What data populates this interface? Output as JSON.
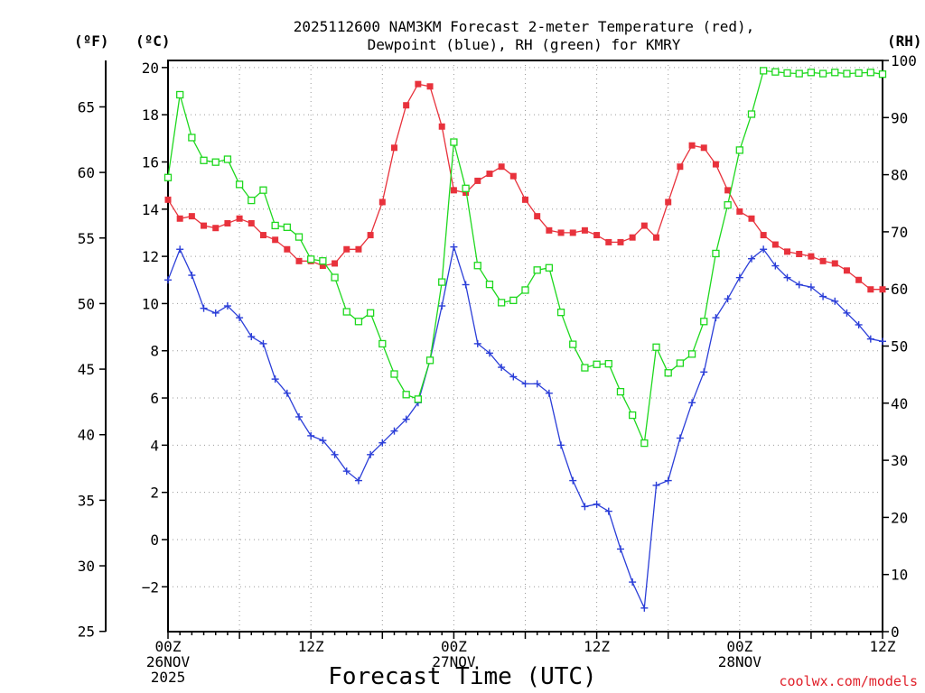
{
  "chart_data": {
    "type": "line",
    "title": [
      "2025112600 NAM3KM Forecast 2-meter Temperature (red),",
      "Dewpoint (blue), RH (green) for KMRY"
    ],
    "xlabel": "Forecast Time (UTC)",
    "credit": "coolwx.com/models",
    "unit_labels": {
      "fahrenheit": "(ºF)",
      "celsius": "(ºC)",
      "rh": "(RH)"
    },
    "x_range_hours": [
      0,
      60
    ],
    "x_ticks": [
      {
        "hour": 0,
        "lines": [
          "00Z",
          "26NOV",
          "2025"
        ]
      },
      {
        "hour": 12,
        "lines": [
          "12Z"
        ]
      },
      {
        "hour": 24,
        "lines": [
          "00Z",
          "27NOV"
        ]
      },
      {
        "hour": 36,
        "lines": [
          "12Z"
        ]
      },
      {
        "hour": 48,
        "lines": [
          "00Z",
          "28NOV"
        ]
      },
      {
        "hour": 60,
        "lines": [
          "12Z"
        ]
      }
    ],
    "celsius_axis": {
      "range": [
        -3.9,
        20.3
      ],
      "ticks": [
        "20",
        "18",
        "16",
        "14",
        "12",
        "10",
        "8",
        "6",
        "4",
        "2",
        "0",
        "−2"
      ],
      "tick_values": [
        20,
        18,
        16,
        14,
        12,
        10,
        8,
        6,
        4,
        2,
        0,
        -2
      ]
    },
    "fahrenheit_axis": {
      "ticks": [
        "65",
        "60",
        "55",
        "50",
        "45",
        "40",
        "35",
        "30",
        "25"
      ],
      "tick_values": [
        65,
        60,
        55,
        50,
        45,
        40,
        35,
        30,
        25
      ]
    },
    "rh_axis": {
      "range": [
        0,
        100
      ],
      "ticks": [
        "100",
        "90",
        "80",
        "70",
        "60",
        "50",
        "40",
        "30",
        "20",
        "10",
        "0"
      ],
      "tick_values": [
        100,
        90,
        80,
        70,
        60,
        50,
        40,
        30,
        20,
        10,
        0
      ]
    },
    "hours": [
      0,
      1,
      2,
      3,
      4,
      5,
      6,
      7,
      8,
      9,
      10,
      11,
      12,
      13,
      14,
      15,
      16,
      17,
      18,
      19,
      20,
      21,
      22,
      23,
      24,
      25,
      26,
      27,
      28,
      29,
      30,
      31,
      32,
      33,
      34,
      35,
      36,
      37,
      38,
      39,
      40,
      41,
      42,
      43,
      44,
      45,
      46,
      47,
      48,
      49,
      50,
      51,
      52,
      53,
      54,
      55,
      56,
      57,
      58,
      59,
      60
    ],
    "series": [
      {
        "name": "2-meter Temperature",
        "units": "C",
        "color": "#e8323c",
        "marker": "filled-square",
        "values": [
          14.4,
          13.6,
          13.7,
          13.3,
          13.2,
          13.4,
          13.6,
          13.4,
          12.9,
          12.7,
          12.3,
          11.8,
          11.8,
          11.6,
          11.7,
          12.3,
          12.3,
          12.9,
          14.3,
          16.6,
          18.4,
          19.3,
          19.2,
          17.5,
          14.8,
          14.7,
          15.2,
          15.5,
          15.8,
          15.4,
          14.4,
          13.7,
          13.1,
          13.0,
          13.0,
          13.1,
          12.9,
          12.6,
          12.6,
          12.8,
          13.3,
          12.8,
          14.3,
          15.8,
          16.7,
          16.6,
          15.9,
          14.8,
          13.9,
          13.6,
          12.9,
          12.5,
          12.2,
          12.1,
          12.0,
          11.8,
          11.7,
          11.4,
          11.0,
          10.6,
          10.6
        ]
      },
      {
        "name": "Dewpoint",
        "units": "C",
        "color": "#2b3ed8",
        "marker": "plus",
        "values": [
          11.0,
          12.3,
          11.2,
          9.8,
          9.6,
          9.9,
          9.4,
          8.6,
          8.3,
          6.8,
          6.2,
          5.2,
          4.4,
          4.2,
          3.6,
          2.9,
          2.5,
          3.6,
          4.1,
          4.6,
          5.1,
          5.8,
          7.6,
          9.9,
          12.4,
          10.8,
          8.3,
          7.9,
          7.3,
          6.9,
          6.6,
          6.6,
          6.2,
          4.0,
          2.5,
          1.4,
          1.5,
          1.2,
          -0.4,
          -1.8,
          -2.9,
          2.3,
          2.5,
          4.3,
          5.8,
          7.1,
          9.4,
          10.2,
          11.1,
          11.9,
          12.3,
          11.6,
          11.1,
          10.8,
          10.7,
          10.3,
          10.1,
          9.6,
          9.1,
          8.5,
          8.4
        ]
      },
      {
        "name": "RH",
        "units": "%",
        "color": "#1ed81e",
        "marker": "open-square",
        "values": [
          79.5,
          94.0,
          86.5,
          82.5,
          82.2,
          82.7,
          78.3,
          75.5,
          77.3,
          71.1,
          70.8,
          69.1,
          65.2,
          64.9,
          62.0,
          56.0,
          54.3,
          55.8,
          50.4,
          45.1,
          41.5,
          40.7,
          47.5,
          61.2,
          85.7,
          77.6,
          64.1,
          60.8,
          57.6,
          58.0,
          59.8,
          63.3,
          63.7,
          55.9,
          50.3,
          46.2,
          46.8,
          46.9,
          42.0,
          37.9,
          33.0,
          49.8,
          45.3,
          47.0,
          48.6,
          54.3,
          66.2,
          74.7,
          84.3,
          90.6,
          98.2,
          98.0,
          97.8,
          97.7,
          97.9,
          97.7,
          97.9,
          97.7,
          97.8,
          97.9,
          97.6
        ]
      }
    ]
  }
}
